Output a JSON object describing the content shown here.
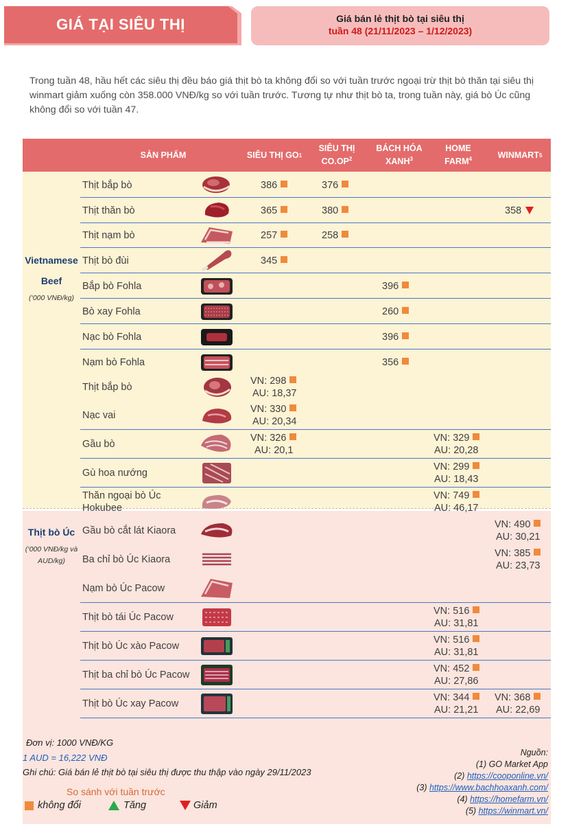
{
  "header": {
    "badge": "GIÁ TẠI SIÊU THỊ",
    "title": "Giá bán lẻ thịt bò tại siêu thị",
    "subtitle": "tuần 48 (21/11/2023 – 1/12/2023)"
  },
  "intro": "Trong tuần 48, hầu hết các siêu thị đều báo giá thịt bò ta không đổi so với tuần trước ngoại trừ thịt bò thăn tại siêu thị winmart giảm xuống còn 358.000 VNĐ/kg so với tuần trước. Tương tự như thịt bò ta, trong tuần này, giá bò Úc cũng không đổi so với tuần 47.",
  "table": {
    "headers": {
      "product": "SẢN PHẨM",
      "go": "SIÊU THỊ GO",
      "go_sup": "1",
      "coop_1": "SIÊU THỊ",
      "coop_2": "CO.OP",
      "coop_sup": "2",
      "bhx_1": "BÁCH HÓA",
      "bhx_2": "XANH",
      "bhx_sup": "3",
      "hf_1": "HOME",
      "hf_2": "FARM",
      "hf_sup": "4",
      "wm": "WINMART",
      "wm_sup": "5"
    },
    "group_vn": {
      "name_1": "Vietnamese",
      "name_2": "Beef",
      "unit": "(‘000 VNĐ/kg)"
    },
    "group_au": {
      "name": "Thịt bò Úc",
      "unit_1": "(‘000 VNĐ/kg và",
      "unit_2": "AUD/kg)"
    },
    "vn_rows": [
      {
        "name": "Thịt bắp bò",
        "go": "386",
        "coop": "376"
      },
      {
        "name": "Thịt thăn bò",
        "go": "365",
        "coop": "380",
        "wm": "358"
      },
      {
        "name": "Thịt nạm bò",
        "go": "257",
        "coop": "258"
      },
      {
        "name": "Thịt bò đùi",
        "go": "345"
      },
      {
        "name": "Bắp bò Fohla",
        "bhx": "396"
      },
      {
        "name": "Bò xay Fohla",
        "bhx": "260"
      },
      {
        "name": "Nạc bò Fohla",
        "bhx": "396"
      },
      {
        "name": "Nạm bò Fohla",
        "bhx": "356"
      }
    ],
    "au_rows": [
      {
        "name": "Thịt bắp bò",
        "go_vn": "VN: 298",
        "go_au": "AU: 18,37"
      },
      {
        "name": "Nạc vai",
        "go_vn": "VN: 330",
        "go_au": "AU: 20,34"
      },
      {
        "name": "Gầu bò",
        "go_vn": "VN: 326",
        "go_au": "AU: 20,1",
        "hf_vn": "VN: 329",
        "hf_au": "AU: 20,28"
      },
      {
        "name": "Gù hoa nướng",
        "hf_vn": "VN: 299",
        "hf_au": "AU: 18,43"
      },
      {
        "name_1": "Thăn ngoại bò Úc",
        "name_2": "Hokubee",
        "hf_vn": "VN: 749",
        "hf_au": "AU: 46,17"
      },
      {
        "name": "Gầu bò cắt lát Kiaora",
        "wm_vn": "VN: 490",
        "wm_au": "AU: 30,21"
      },
      {
        "name": "Ba chỉ bò Úc Kiaora",
        "wm_vn": "VN: 385",
        "wm_au": "AU: 23,73"
      },
      {
        "name": "Nạm bò Úc Pacow"
      },
      {
        "name": "Thịt bò tái Úc Pacow",
        "hf_vn": "VN: 516",
        "hf_au": "AU: 31,81"
      },
      {
        "name": "Thịt bò Úc xào Pacow",
        "hf_vn": "VN: 516",
        "hf_au": "AU: 31,81"
      },
      {
        "name": "Thịt ba chỉ bò Úc Pacow",
        "hf_vn": "VN: 452",
        "hf_au": "AU: 27,86"
      },
      {
        "name": "Thịt bò Úc xay Pacow",
        "hf_vn": "VN: 344",
        "hf_au": "AU: 21,21",
        "wm_vn": "VN: 368",
        "wm_au": "AU: 22,69"
      }
    ]
  },
  "footer": {
    "unit": "Đơn vị: 1000 VNĐ/KG",
    "rate": "1 AUD = 16,222 VNĐ",
    "note": "Ghi chú: Giá bán lẻ thịt bò tại siêu thị được thu thập vào ngày 29/11/2023",
    "legend_title": "So sánh với tuần trước",
    "legend_same": "không đổi",
    "legend_up": "Tăng",
    "legend_down": "Giảm",
    "sources_title": "Nguồn:",
    "source_1": "(1) GO Market App",
    "source_2_prefix": "(2) ",
    "source_2_link": "https://cooponline.vn/",
    "source_3_prefix": "(3) ",
    "source_3_link": "https://www.bachhoaxanh.com/",
    "source_4_prefix": "(4) ",
    "source_4_link": "https://homefarm.vn/",
    "source_5_prefix": "(5) ",
    "source_5_link": "https://winmart.vn/"
  },
  "colors": {
    "header_red": "#e46b6b",
    "header_pink": "#f6bcbc",
    "unchanged": "#f08a3c",
    "increase": "#2aa84a",
    "decrease": "#e02020",
    "vn_band": "#fdf3d5",
    "au_band": "#fbe5de",
    "row_line": "#4a78c2"
  }
}
